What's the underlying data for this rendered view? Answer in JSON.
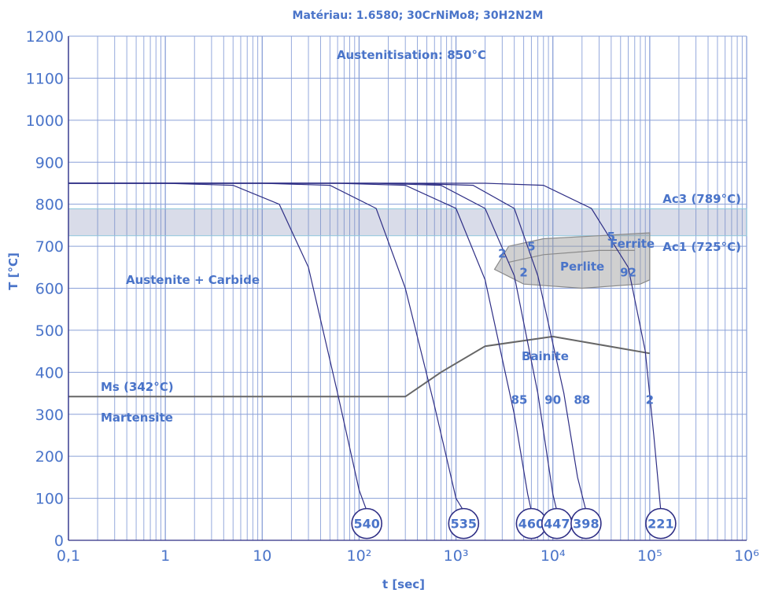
{
  "chart_data": {
    "type": "line",
    "title": "Matériau: 1.6580; 30CrNiMo8; 30H2N2M",
    "xlabel": "t [sec]",
    "ylabel": "T [°C]",
    "xscale": "log",
    "xlim": [
      0.1,
      1000000
    ],
    "ylim": [
      0,
      1200
    ],
    "grid": true,
    "x_ticks": [
      {
        "value": 0.1,
        "label": "0,1"
      },
      {
        "value": 1,
        "label": "1"
      },
      {
        "value": 10,
        "label": "10"
      },
      {
        "value": 100,
        "label": "10²"
      },
      {
        "value": 1000,
        "label": "10³"
      },
      {
        "value": 10000,
        "label": "10⁴"
      },
      {
        "value": 100000,
        "label": "10⁵"
      },
      {
        "value": 1000000,
        "label": "10⁶"
      }
    ],
    "y_ticks": [
      0,
      100,
      200,
      300,
      400,
      500,
      600,
      700,
      800,
      900,
      1000,
      1100,
      1200
    ],
    "austenitisation": "Austenitisation: 850°C",
    "ac3": {
      "label": "Ac3 (789°C)",
      "value": 789
    },
    "ac1": {
      "label": "Ac1 (725°C)",
      "value": 725
    },
    "ms": {
      "label": "Ms (342°C)",
      "value": 342
    },
    "regions": {
      "austenite": "Austenite + Carbide",
      "martensite": "Martensite",
      "bainite": "Bainite",
      "perlite": "Perlite",
      "ferrite": "Ferrite"
    },
    "bainite_boundary": [
      [
        0.1,
        342
      ],
      [
        300,
        342
      ],
      [
        700,
        400
      ],
      [
        2000,
        462
      ],
      [
        10000,
        485
      ],
      [
        30000,
        466
      ],
      [
        100000,
        445
      ]
    ],
    "ferrite_perlite_field_upper": [
      [
        2500,
        645
      ],
      [
        3500,
        700
      ],
      [
        8000,
        718
      ],
      [
        30000,
        725
      ],
      [
        100000,
        732
      ]
    ],
    "ferrite_perlite_field_lower": [
      [
        2500,
        645
      ],
      [
        5000,
        610
      ],
      [
        20000,
        600
      ],
      [
        80000,
        610
      ],
      [
        100000,
        620
      ]
    ],
    "cooling_curves": [
      {
        "hardness": "540",
        "points": [
          [
            0.1,
            850
          ],
          [
            1,
            850
          ],
          [
            5,
            845
          ],
          [
            15,
            800
          ],
          [
            30,
            650
          ],
          [
            60,
            350
          ],
          [
            100,
            120
          ],
          [
            120,
            70
          ]
        ]
      },
      {
        "hardness": "535",
        "points": [
          [
            0.1,
            850
          ],
          [
            10,
            850
          ],
          [
            50,
            845
          ],
          [
            150,
            790
          ],
          [
            300,
            600
          ],
          [
            600,
            320
          ],
          [
            1000,
            100
          ],
          [
            1200,
            70
          ]
        ]
      },
      {
        "hardness": "460",
        "points": [
          [
            0.1,
            850
          ],
          [
            60,
            850
          ],
          [
            300,
            845
          ],
          [
            1000,
            790
          ],
          [
            2000,
            620
          ],
          [
            4000,
            300
          ],
          [
            5500,
            110
          ],
          [
            6000,
            70
          ]
        ]
      },
      {
        "hardness": "447",
        "points": [
          [
            0.1,
            850
          ],
          [
            150,
            850
          ],
          [
            700,
            845
          ],
          [
            2000,
            790
          ],
          [
            4000,
            630
          ],
          [
            7000,
            350
          ],
          [
            10000,
            110
          ],
          [
            11000,
            70
          ]
        ]
      },
      {
        "hardness": "398",
        "points": [
          [
            0.1,
            850
          ],
          [
            300,
            850
          ],
          [
            1500,
            845
          ],
          [
            4000,
            790
          ],
          [
            7000,
            630
          ],
          [
            13000,
            350
          ],
          [
            18000,
            150
          ],
          [
            22000,
            70
          ]
        ]
      },
      {
        "hardness": "221",
        "points": [
          [
            0.1,
            850
          ],
          [
            2000,
            850
          ],
          [
            8000,
            845
          ],
          [
            25000,
            790
          ],
          [
            60000,
            650
          ],
          [
            90000,
            450
          ],
          [
            110000,
            250
          ],
          [
            130000,
            70
          ]
        ]
      }
    ],
    "percent_labels": [
      {
        "text": "2",
        "x": 3000,
        "y": 673
      },
      {
        "text": "5",
        "x": 6000,
        "y": 690
      },
      {
        "text": "2",
        "x": 5000,
        "y": 628
      },
      {
        "text": "5",
        "x": 40000,
        "y": 713
      },
      {
        "text": "92",
        "x": 60000,
        "y": 628
      },
      {
        "text": "85",
        "x": 4500,
        "y": 325
      },
      {
        "text": "90",
        "x": 10000,
        "y": 325
      },
      {
        "text": "88",
        "x": 20000,
        "y": 325
      },
      {
        "text": "2",
        "x": 100000,
        "y": 325
      }
    ]
  }
}
